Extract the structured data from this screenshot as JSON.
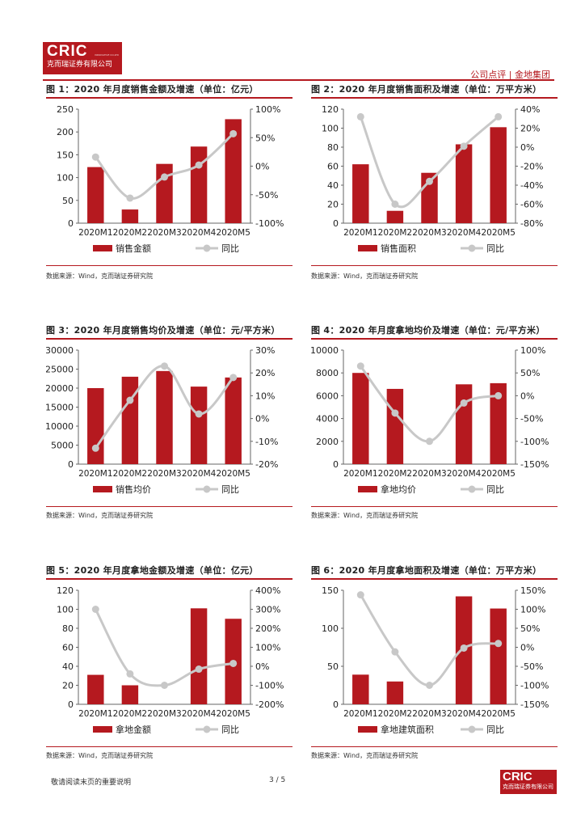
{
  "header": {
    "logo_text": "CRIC",
    "logo_subtext": "克而瑞证券有限公司",
    "logo_tiny": "INNOVATIVE CO.LTD",
    "right_text": "公司点评 | 金地集团"
  },
  "footer": {
    "note": "敬请阅读末页的重要说明",
    "page": "3 / 5",
    "logo_text": "CRIC",
    "logo_subtext": "克而瑞证券有限公司"
  },
  "chart_data": [
    {
      "type": "bar",
      "title": "图 1：2020 年月度销售金额及增速（单位：亿元）",
      "categories": [
        "2020M1",
        "2020M2",
        "2020M3",
        "2020M4",
        "2020M5"
      ],
      "series": [
        {
          "name": "销售金额",
          "type": "bar",
          "axis": "left",
          "values": [
            123,
            30,
            130,
            168,
            228
          ]
        },
        {
          "name": "同比",
          "type": "line",
          "axis": "right",
          "values": [
            16,
            -56,
            -19,
            2,
            57
          ]
        }
      ],
      "y_left": {
        "min": 0,
        "max": 250,
        "step": 50,
        "ticks": [
          "0",
          "50",
          "100",
          "150",
          "200",
          "250"
        ]
      },
      "y_right": {
        "min": -100,
        "max": 100,
        "step": 50,
        "ticks": [
          "-100%",
          "-50%",
          "0%",
          "50%",
          "100%"
        ]
      },
      "source": "数据来源：Wind，克而瑞证券研究院"
    },
    {
      "type": "bar",
      "title": "图 2：2020 年月度销售面积及增速（单位：万平方米）",
      "categories": [
        "2020M1",
        "2020M2",
        "2020M3",
        "2020M4",
        "2020M5"
      ],
      "series": [
        {
          "name": "销售面积",
          "type": "bar",
          "axis": "left",
          "values": [
            62,
            13,
            53,
            83,
            101
          ]
        },
        {
          "name": "同比",
          "type": "line",
          "axis": "right",
          "values": [
            32,
            -60,
            -36,
            1,
            32
          ]
        }
      ],
      "y_left": {
        "min": 0,
        "max": 120,
        "step": 20,
        "ticks": [
          "0",
          "20",
          "40",
          "60",
          "80",
          "100",
          "120"
        ]
      },
      "y_right": {
        "min": -80,
        "max": 40,
        "step": 20,
        "ticks": [
          "-80%",
          "-60%",
          "-40%",
          "-20%",
          "0%",
          "20%",
          "40%"
        ]
      },
      "source": "数据来源：Wind，克而瑞证券研究院"
    },
    {
      "type": "bar",
      "title": "图 3：2020 年月度销售均价及增速（单位：元/平方米）",
      "categories": [
        "2020M1",
        "2020M2",
        "2020M3",
        "2020M4",
        "2020M5"
      ],
      "series": [
        {
          "name": "销售均价",
          "type": "bar",
          "axis": "left",
          "values": [
            20000,
            23000,
            24500,
            20400,
            22800
          ]
        },
        {
          "name": "同比",
          "type": "line",
          "axis": "right",
          "values": [
            -13,
            8,
            23,
            2,
            18
          ]
        }
      ],
      "y_left": {
        "min": 0,
        "max": 30000,
        "step": 5000,
        "ticks": [
          "0",
          "5000",
          "10000",
          "15000",
          "20000",
          "25000",
          "30000"
        ]
      },
      "y_right": {
        "min": -20,
        "max": 30,
        "step": 10,
        "ticks": [
          "-20%",
          "-10%",
          "0%",
          "10%",
          "20%",
          "30%"
        ]
      },
      "source": "数据来源：Wind，克而瑞证券研究院"
    },
    {
      "type": "bar",
      "title": "图 4：2020 年月度拿地均价及增速（单位：元/平方米）",
      "categories": [
        "2020M1",
        "2020M2",
        "2020M3",
        "2020M4",
        "2020M5"
      ],
      "series": [
        {
          "name": "拿地均价",
          "type": "bar",
          "axis": "left",
          "values": [
            8000,
            6600,
            0,
            7000,
            7100
          ]
        },
        {
          "name": "同比",
          "type": "line",
          "axis": "right",
          "values": [
            65,
            -38,
            -100,
            -16,
            0
          ]
        }
      ],
      "y_left": {
        "min": 0,
        "max": 10000,
        "step": 2000,
        "ticks": [
          "0",
          "2000",
          "4000",
          "6000",
          "8000",
          "10000"
        ]
      },
      "y_right": {
        "min": -150,
        "max": 100,
        "step": 50,
        "ticks": [
          "-150%",
          "-100%",
          "-50%",
          "0%",
          "50%",
          "100%"
        ]
      },
      "source": "数据来源：Wind，克而瑞证券研究院"
    },
    {
      "type": "bar",
      "title": "图 5：2020 年月度拿地金额及增速（单位：亿元）",
      "categories": [
        "2020M1",
        "2020M2",
        "2020M3",
        "2020M4",
        "2020M5"
      ],
      "series": [
        {
          "name": "拿地金额",
          "type": "bar",
          "axis": "left",
          "values": [
            31,
            20,
            0,
            101,
            90
          ]
        },
        {
          "name": "同比",
          "type": "line",
          "axis": "right",
          "values": [
            300,
            -40,
            -100,
            -15,
            15
          ]
        }
      ],
      "y_left": {
        "min": 0,
        "max": 120,
        "step": 20,
        "ticks": [
          "0",
          "20",
          "40",
          "60",
          "80",
          "100",
          "120"
        ]
      },
      "y_right": {
        "min": -200,
        "max": 400,
        "step": 100,
        "ticks": [
          "-200%",
          "-100%",
          "0%",
          "100%",
          "200%",
          "300%",
          "400%"
        ]
      },
      "source": "数据来源：Wind，克而瑞证券研究院"
    },
    {
      "type": "bar",
      "title": "图 6：2020 年月度拿地面积及增速（单位：万平方米）",
      "categories": [
        "2020M1",
        "2020M2",
        "2020M3",
        "2020M4",
        "2020M5"
      ],
      "series": [
        {
          "name": "拿地建筑面积",
          "type": "bar",
          "axis": "left",
          "values": [
            39,
            30,
            0,
            142,
            126
          ]
        },
        {
          "name": "同比",
          "type": "line",
          "axis": "right",
          "values": [
            138,
            -12,
            -100,
            -2,
            10
          ]
        }
      ],
      "y_left": {
        "min": 0,
        "max": 150,
        "step": 50,
        "ticks": [
          "0",
          "50",
          "100",
          "150"
        ]
      },
      "y_right": {
        "min": -150,
        "max": 150,
        "step": 50,
        "ticks": [
          "-150%",
          "-100%",
          "-50%",
          "0%",
          "50%",
          "100%",
          "150%"
        ]
      },
      "source": "数据来源：Wind，克而瑞证券研究院"
    }
  ],
  "colors": {
    "bar": "#b5191f",
    "line": "#c8c8c8",
    "accent": "#b5191f"
  }
}
